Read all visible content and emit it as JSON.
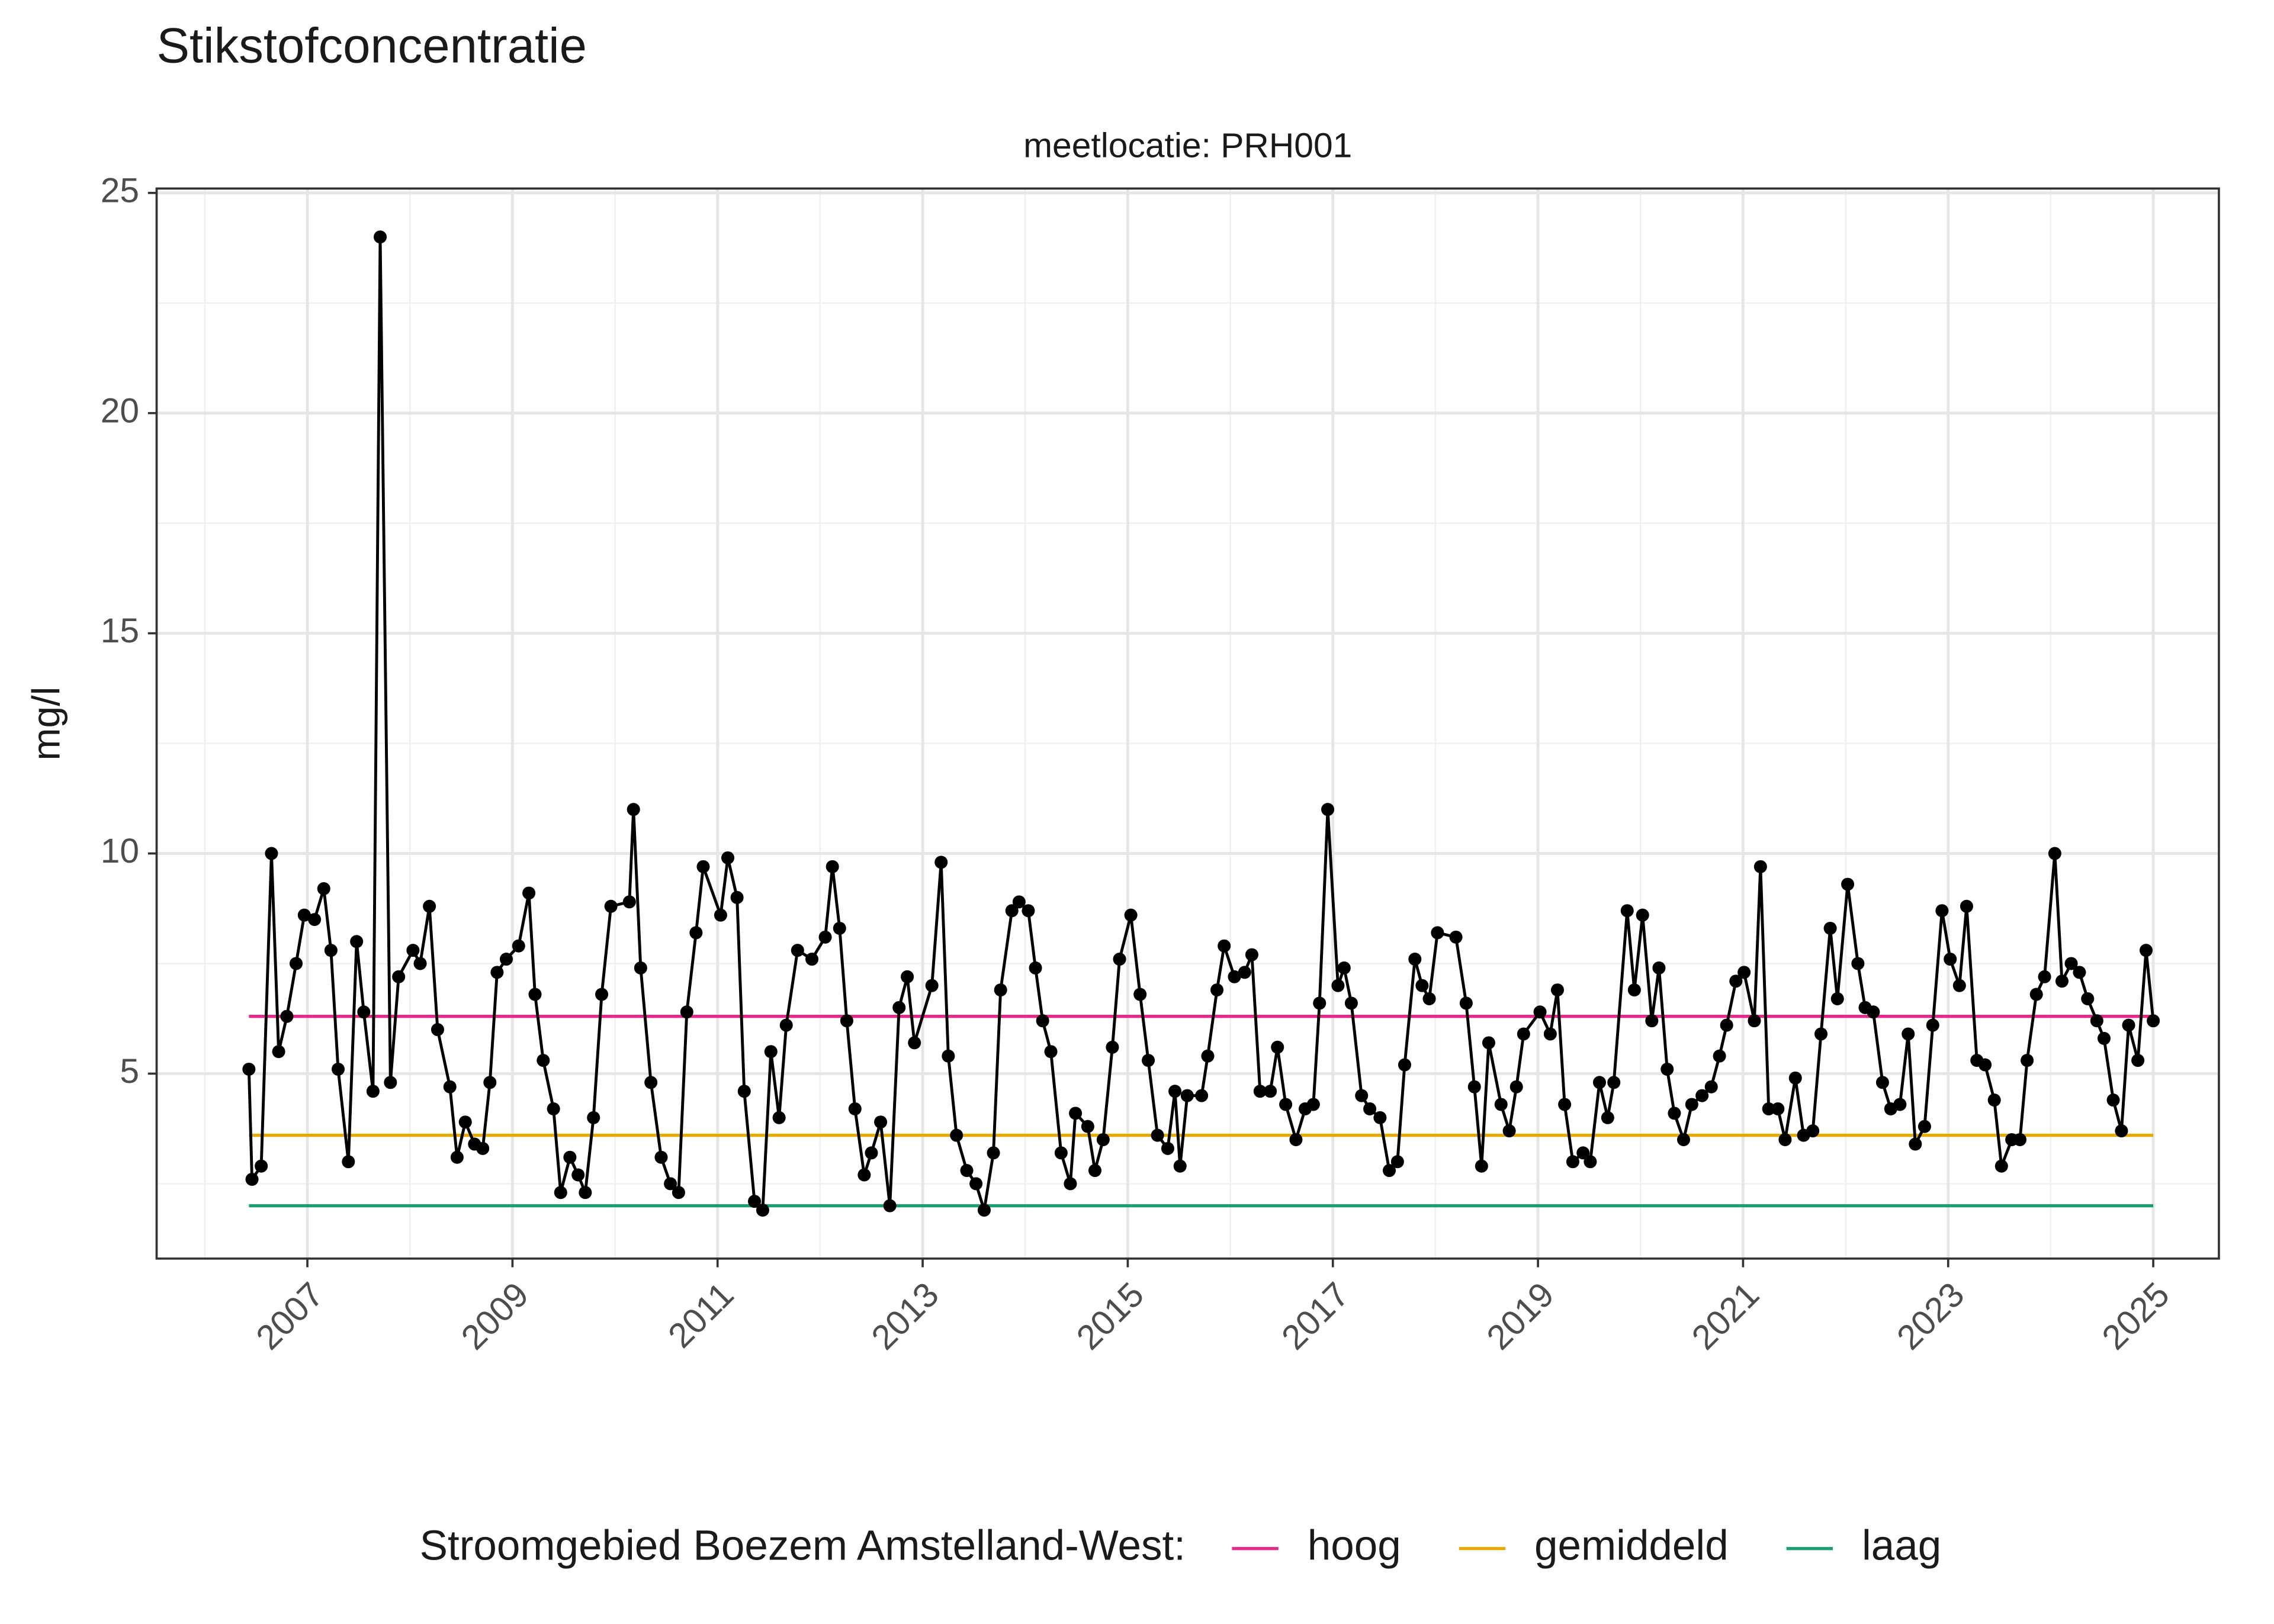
{
  "chart_data": {
    "type": "line",
    "title": "Stikstofconcentratie",
    "subtitle": "meetlocatie: PRH001",
    "ylabel": "mg/l",
    "color": "#000000",
    "x": [
      2006.43,
      2006.46,
      2006.55,
      2006.65,
      2006.72,
      2006.8,
      2006.89,
      2006.97,
      2007.07,
      2007.16,
      2007.23,
      2007.3,
      2007.4,
      2007.48,
      2007.55,
      2007.64,
      2007.71,
      2007.81,
      2007.89,
      2008.03,
      2008.1,
      2008.19,
      2008.27,
      2008.39,
      2008.46,
      2008.54,
      2008.63,
      2008.71,
      2008.78,
      2008.85,
      2008.94,
      2009.06,
      2009.16,
      2009.22,
      2009.3,
      2009.4,
      2009.47,
      2009.56,
      2009.64,
      2009.71,
      2009.79,
      2009.87,
      2009.96,
      2010.14,
      2010.18,
      2010.25,
      2010.35,
      2010.45,
      2010.54,
      2010.62,
      2010.7,
      2010.79,
      2010.86,
      2011.03,
      2011.1,
      2011.19,
      2011.26,
      2011.36,
      2011.44,
      2011.52,
      2011.6,
      2011.67,
      2011.78,
      2011.92,
      2012.05,
      2012.12,
      2012.19,
      2012.26,
      2012.34,
      2012.43,
      2012.5,
      2012.59,
      2012.68,
      2012.77,
      2012.85,
      2012.92,
      2013.09,
      2013.18,
      2013.25,
      2013.33,
      2013.43,
      2013.52,
      2013.6,
      2013.69,
      2013.76,
      2013.87,
      2013.94,
      2014.03,
      2014.1,
      2014.17,
      2014.25,
      2014.35,
      2014.44,
      2014.49,
      2014.61,
      2014.68,
      2014.76,
      2014.85,
      2014.92,
      2015.03,
      2015.12,
      2015.2,
      2015.29,
      2015.39,
      2015.46,
      2015.51,
      2015.58,
      2015.72,
      2015.78,
      2015.87,
      2015.94,
      2016.04,
      2016.14,
      2016.21,
      2016.29,
      2016.39,
      2016.46,
      2016.54,
      2016.64,
      2016.73,
      2016.81,
      2016.87,
      2016.95,
      2017.05,
      2017.11,
      2017.18,
      2017.28,
      2017.36,
      2017.46,
      2017.55,
      2017.63,
      2017.7,
      2017.8,
      2017.87,
      2017.94,
      2018.02,
      2018.2,
      2018.3,
      2018.38,
      2018.45,
      2018.52,
      2018.64,
      2018.72,
      2018.79,
      2018.86,
      2019.02,
      2019.12,
      2019.19,
      2019.26,
      2019.34,
      2019.44,
      2019.51,
      2019.6,
      2019.68,
      2019.74,
      2019.87,
      2019.94,
      2020.02,
      2020.11,
      2020.18,
      2020.26,
      2020.33,
      2020.42,
      2020.5,
      2020.6,
      2020.69,
      2020.77,
      2020.84,
      2020.93,
      2021.01,
      2021.11,
      2021.17,
      2021.25,
      2021.34,
      2021.41,
      2021.51,
      2021.59,
      2021.68,
      2021.76,
      2021.85,
      2021.92,
      2022.02,
      2022.12,
      2022.19,
      2022.27,
      2022.36,
      2022.44,
      2022.53,
      2022.61,
      2022.68,
      2022.77,
      2022.85,
      2022.94,
      2023.02,
      2023.11,
      2023.18,
      2023.28,
      2023.36,
      2023.45,
      2023.52,
      2023.62,
      2023.7,
      2023.77,
      2023.86,
      2023.94,
      2024.04,
      2024.11,
      2024.2,
      2024.28,
      2024.36,
      2024.45,
      2024.52,
      2024.61,
      2024.69,
      2024.76,
      2024.85,
      2024.93,
      2025.0
    ],
    "values": [
      5.1,
      2.6,
      2.9,
      10.0,
      5.5,
      6.3,
      7.5,
      8.6,
      8.5,
      9.2,
      7.8,
      5.1,
      3.0,
      8.0,
      6.4,
      4.6,
      24.0,
      4.8,
      7.2,
      7.8,
      7.5,
      8.8,
      6.0,
      4.7,
      3.1,
      3.9,
      3.4,
      3.3,
      4.8,
      7.3,
      7.6,
      7.9,
      9.1,
      6.8,
      5.3,
      4.2,
      2.3,
      3.1,
      2.7,
      2.3,
      4.0,
      6.8,
      8.8,
      8.9,
      11.0,
      7.4,
      4.8,
      3.1,
      2.5,
      2.3,
      6.4,
      8.2,
      9.7,
      8.6,
      9.9,
      9.0,
      4.6,
      2.1,
      1.9,
      5.5,
      4.0,
      6.1,
      7.8,
      7.6,
      8.1,
      9.7,
      8.3,
      6.2,
      4.2,
      2.7,
      3.2,
      3.9,
      2.0,
      6.5,
      7.2,
      5.7,
      7.0,
      9.8,
      5.4,
      3.6,
      2.8,
      2.5,
      1.9,
      3.2,
      6.9,
      8.7,
      8.9,
      8.7,
      7.4,
      6.2,
      5.5,
      3.2,
      2.5,
      4.1,
      3.8,
      2.8,
      3.5,
      5.6,
      7.6,
      8.6,
      6.8,
      5.3,
      3.6,
      3.3,
      4.6,
      2.9,
      4.5,
      4.5,
      5.4,
      6.9,
      7.9,
      7.2,
      7.3,
      7.7,
      4.6,
      4.6,
      5.6,
      4.3,
      3.5,
      4.2,
      4.3,
      6.6,
      11.0,
      7.0,
      7.4,
      6.6,
      4.5,
      4.2,
      4.0,
      2.8,
      3.0,
      5.2,
      7.6,
      7.0,
      6.7,
      8.2,
      8.1,
      6.6,
      4.7,
      2.9,
      5.7,
      4.3,
      3.7,
      4.7,
      5.9,
      6.4,
      5.9,
      6.9,
      4.3,
      3.0,
      3.2,
      3.0,
      4.8,
      4.0,
      4.8,
      8.7,
      6.9,
      8.6,
      6.2,
      7.4,
      5.1,
      4.1,
      3.5,
      4.3,
      4.5,
      4.7,
      5.4,
      6.1,
      7.1,
      7.3,
      6.2,
      9.7,
      4.2,
      4.2,
      3.5,
      4.9,
      3.6,
      3.7,
      5.9,
      8.3,
      6.7,
      9.3,
      7.5,
      6.5,
      6.4,
      4.8,
      4.2,
      4.3,
      5.9,
      3.4,
      3.8,
      6.1,
      8.7,
      7.6,
      7.0,
      8.8,
      5.3,
      5.2,
      4.4,
      2.9,
      3.5,
      3.5,
      5.3,
      6.8,
      7.2,
      10.0,
      7.1,
      7.5,
      7.3,
      6.7,
      6.2,
      5.8,
      4.4,
      3.7,
      6.1,
      5.3,
      7.8,
      6.2
    ],
    "reference_lines": [
      {
        "name": "hoog",
        "value": 6.3,
        "color": "#e7298a"
      },
      {
        "name": "gemiddeld",
        "value": 3.6,
        "color": "#e6ab02"
      },
      {
        "name": "laag",
        "value": 2.0,
        "color": "#1b9e77"
      }
    ],
    "legend_title": "Stroomgebied Boezem Amstelland-West:",
    "legend": "bottom",
    "xlim": [
      2005.53,
      2025.64
    ],
    "ylim": [
      0.8,
      25.1
    ],
    "xticks": [
      2007,
      2009,
      2011,
      2013,
      2015,
      2017,
      2019,
      2021,
      2023,
      2025
    ],
    "yticks": [
      5,
      10,
      15,
      20,
      25
    ],
    "grid": true
  }
}
